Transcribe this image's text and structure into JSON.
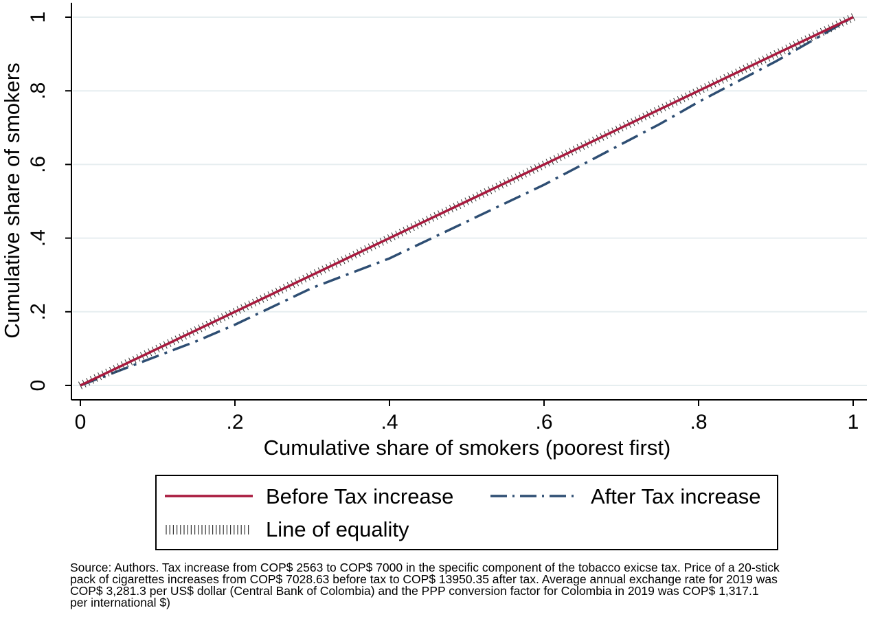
{
  "chart_data": {
    "type": "line",
    "xlabel": "Cumulative share of smokers (poorest first)",
    "ylabel": "Cumulative share of smokers",
    "xlim": [
      0,
      1
    ],
    "ylim": [
      0,
      1
    ],
    "x_ticks": [
      {
        "value": 0,
        "label": "0"
      },
      {
        "value": 0.2,
        "label": ".2"
      },
      {
        "value": 0.4,
        "label": ".4"
      },
      {
        "value": 0.6,
        "label": ".6"
      },
      {
        "value": 0.8,
        "label": ".8"
      },
      {
        "value": 1,
        "label": "1"
      }
    ],
    "y_ticks": [
      {
        "value": 0,
        "label": "0"
      },
      {
        "value": 0.2,
        "label": ".2"
      },
      {
        "value": 0.4,
        "label": ".4"
      },
      {
        "value": 0.6,
        "label": ".6"
      },
      {
        "value": 0.8,
        "label": ".8"
      },
      {
        "value": 1,
        "label": "1"
      }
    ],
    "grid": "horizontal",
    "legend_position": "bottom",
    "series": [
      {
        "name": "Before Tax increase",
        "color": "#a8193d",
        "style": "solid",
        "x": [
          0,
          0.1,
          0.2,
          0.3,
          0.4,
          0.5,
          0.6,
          0.7,
          0.8,
          0.9,
          1
        ],
        "y": [
          0,
          0.1,
          0.2,
          0.3,
          0.4,
          0.5,
          0.6,
          0.7,
          0.8,
          0.9,
          1
        ]
      },
      {
        "name": "After Tax increase",
        "color": "#2e4e73",
        "style": "dash-dot",
        "x": [
          0,
          0.05,
          0.1,
          0.15,
          0.2,
          0.25,
          0.3,
          0.35,
          0.4,
          0.45,
          0.5,
          0.55,
          0.6,
          0.65,
          0.7,
          0.75,
          0.8,
          0.85,
          0.9,
          0.95,
          1
        ],
        "y": [
          0,
          0.04,
          0.08,
          0.12,
          0.165,
          0.215,
          0.265,
          0.305,
          0.345,
          0.395,
          0.445,
          0.495,
          0.545,
          0.6,
          0.655,
          0.71,
          0.77,
          0.825,
          0.88,
          0.94,
          1
        ]
      },
      {
        "name": "Line of equality",
        "color": "#333333",
        "style": "tick-hatched",
        "x": [
          0,
          1
        ],
        "y": [
          0,
          1
        ]
      }
    ]
  },
  "source_note": "Source: Authors. Tax increase from COP$ 2563 to COP$ 7000 in the specific component of the tobacco exicse tax. Price of a 20-stick\npack of cigarettes increases from COP$ 7028.63 before tax to COP$ 13950.35 after tax. Average annual exchange rate for 2019 was\nCOP$ 3,281.3 per US$ dollar (Central Bank of Colombia) and the PPP conversion factor for Colombia in 2019 was COP$ 1,317.1\n per international $)"
}
